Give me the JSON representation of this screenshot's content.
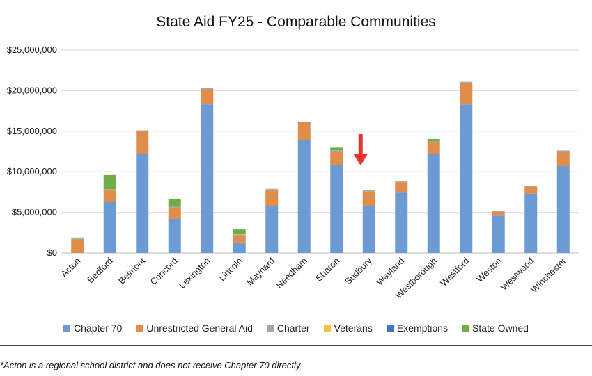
{
  "chart_data": {
    "type": "bar",
    "stacked": true,
    "title": "State Aid FY25 - Comparable Communities",
    "xlabel": "",
    "ylabel": "",
    "ylim": [
      0,
      25000000
    ],
    "y_ticks": [
      "$0",
      "$5,000,000",
      "$10,000,000",
      "$15,000,000",
      "$20,000,000",
      "$25,000,000"
    ],
    "grid": true,
    "legend_position": "bottom",
    "categories": [
      "Acton",
      "Bedford",
      "Belmont",
      "Concord",
      "Lexington",
      "Lincoln",
      "Maynard",
      "Needham",
      "Sharon",
      "Sudbury",
      "Wayland",
      "Westborough",
      "Westford",
      "Weston",
      "Westwood",
      "Winchester"
    ],
    "series": [
      {
        "name": "Chapter 70",
        "color": "#6b9bd2",
        "values": [
          0,
          6300000,
          12200000,
          4200000,
          18300000,
          1300000,
          5800000,
          13900000,
          10800000,
          5800000,
          7500000,
          12200000,
          18300000,
          4600000,
          7300000,
          10700000
        ]
      },
      {
        "name": "Unrestricted General Aid",
        "color": "#e08c4a",
        "values": [
          1700000,
          1400000,
          2800000,
          1400000,
          1900000,
          900000,
          1900000,
          2200000,
          1700000,
          1800000,
          1200000,
          1500000,
          2600000,
          500000,
          900000,
          1800000
        ]
      },
      {
        "name": "Charter",
        "color": "#a5a5a5",
        "values": [
          50000,
          50000,
          60000,
          50000,
          100000,
          50000,
          150000,
          50000,
          100000,
          100000,
          50000,
          50000,
          150000,
          50000,
          50000,
          100000
        ]
      },
      {
        "name": "Veterans",
        "color": "#f5c242",
        "values": [
          20000,
          70000,
          20000,
          20000,
          10000,
          30000,
          20000,
          10000,
          20000,
          10000,
          20000,
          10000,
          10000,
          10000,
          10000,
          20000
        ]
      },
      {
        "name": "Exemptions",
        "color": "#4472c4",
        "values": [
          20000,
          30000,
          20000,
          20000,
          20000,
          20000,
          20000,
          20000,
          20000,
          20000,
          20000,
          20000,
          20000,
          20000,
          20000,
          20000
        ]
      },
      {
        "name": "State Owned",
        "color": "#70ad47",
        "values": [
          110000,
          1750000,
          0,
          910000,
          0,
          600000,
          0,
          0,
          340000,
          0,
          110000,
          270000,
          0,
          0,
          0,
          0
        ]
      }
    ],
    "annotations": [
      {
        "type": "arrow",
        "target": "Sudbury",
        "color": "#e8332a"
      }
    ]
  },
  "footnote": "*Acton is a regional school district and does not receive Chapter 70 directly"
}
